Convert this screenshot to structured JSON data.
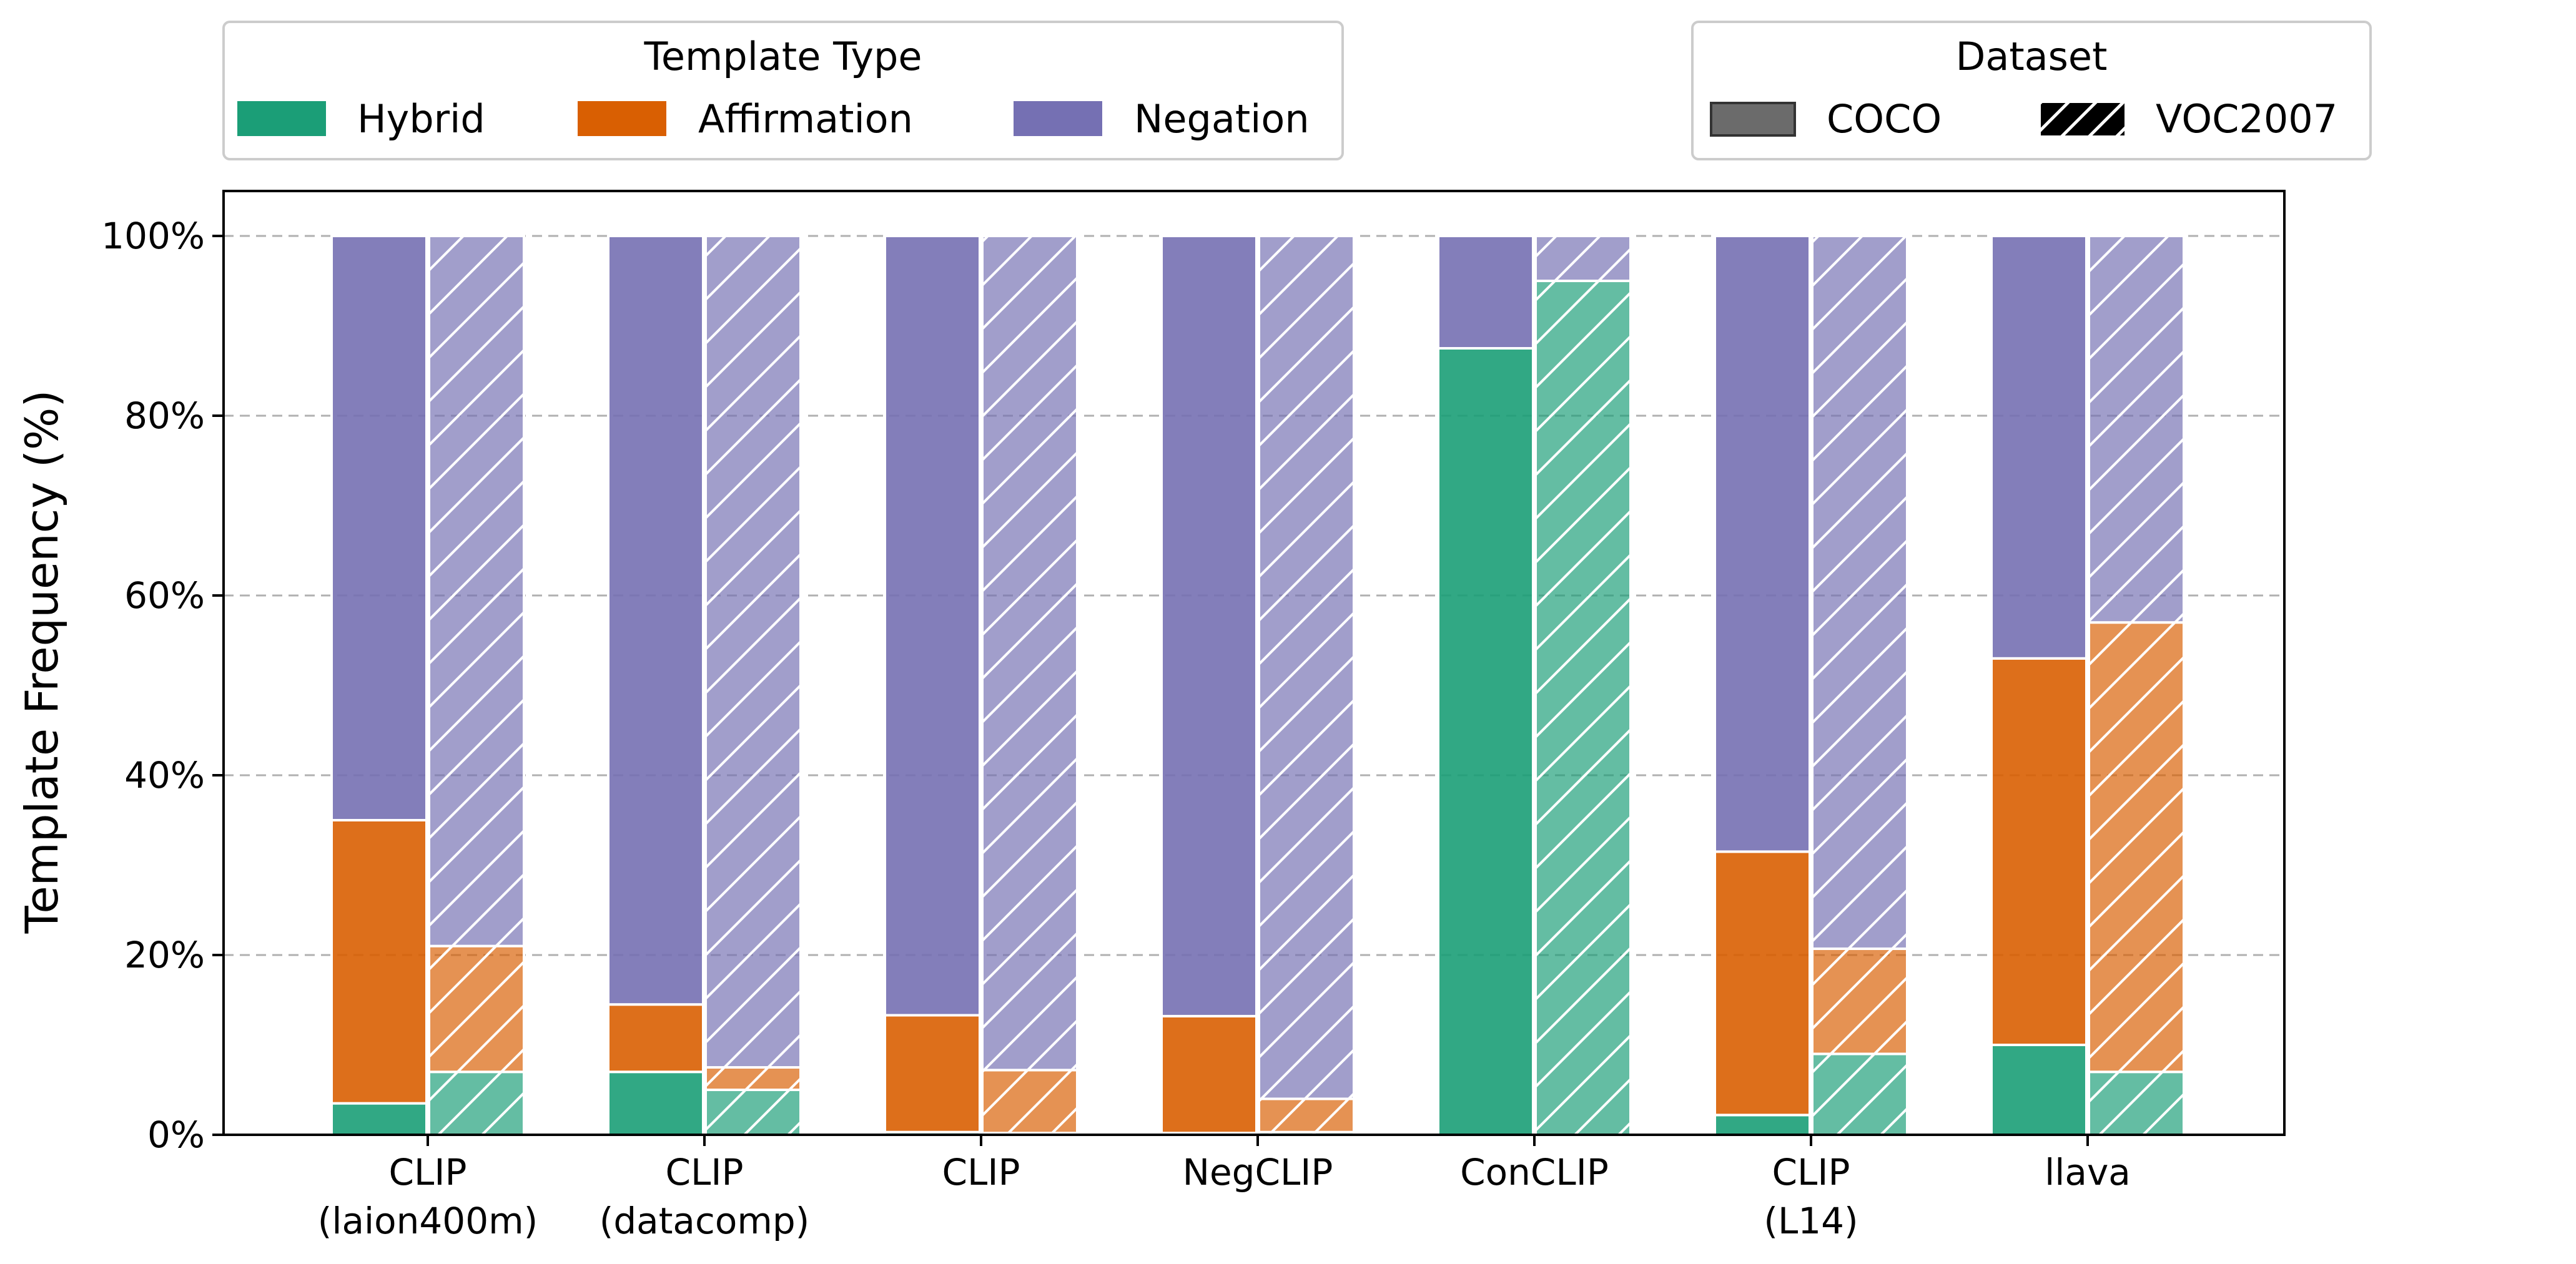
{
  "chart_data": {
    "type": "bar",
    "stacked": true,
    "grouped": true,
    "categories": [
      "CLIP\n(laion400m)",
      "CLIP\n(datacomp)",
      "CLIP",
      "NegCLIP",
      "ConCLIP",
      "CLIP\n(L14)",
      "llava"
    ],
    "ylabel": "Template Frequency (%)",
    "xlabel": "",
    "ylim": [
      0,
      105
    ],
    "yticks": [
      0,
      20,
      40,
      60,
      80,
      100
    ],
    "ytick_labels": [
      "0%",
      "20%",
      "40%",
      "60%",
      "80%",
      "100%"
    ],
    "grid": "y-dashed",
    "template_legend": {
      "title": "Template Type",
      "placement": "top-left",
      "entries": [
        "Hybrid",
        "Affirmation",
        "Negation"
      ]
    },
    "dataset_legend": {
      "title": "Dataset",
      "placement": "top-right",
      "entries": [
        "COCO",
        "VOC2007"
      ]
    },
    "colors": {
      "Hybrid": "#1b9e77",
      "Affirmation": "#d95f02",
      "Negation": "#7570b3"
    },
    "datasets": [
      {
        "name": "COCO",
        "hatch": "none",
        "series": [
          {
            "name": "Hybrid",
            "values": [
              3.5,
              7.0,
              0.3,
              0.2,
              87.5,
              2.2,
              10.0
            ]
          },
          {
            "name": "Affirmation",
            "values": [
              31.5,
              7.5,
              13.0,
              13.0,
              0.0,
              29.3,
              43.0
            ]
          },
          {
            "name": "Negation",
            "values": [
              65.0,
              85.5,
              86.7,
              86.8,
              12.5,
              68.5,
              47.0
            ]
          }
        ]
      },
      {
        "name": "VOC2007",
        "hatch": "diagonal",
        "series": [
          {
            "name": "Hybrid",
            "values": [
              7.0,
              5.0,
              0.2,
              0.3,
              95.0,
              9.0,
              7.0
            ]
          },
          {
            "name": "Affirmation",
            "values": [
              14.0,
              2.5,
              7.0,
              3.7,
              0.0,
              11.7,
              50.0
            ]
          },
          {
            "name": "Negation",
            "values": [
              79.0,
              92.5,
              92.8,
              96.0,
              5.0,
              79.3,
              43.0
            ]
          }
        ]
      }
    ]
  }
}
